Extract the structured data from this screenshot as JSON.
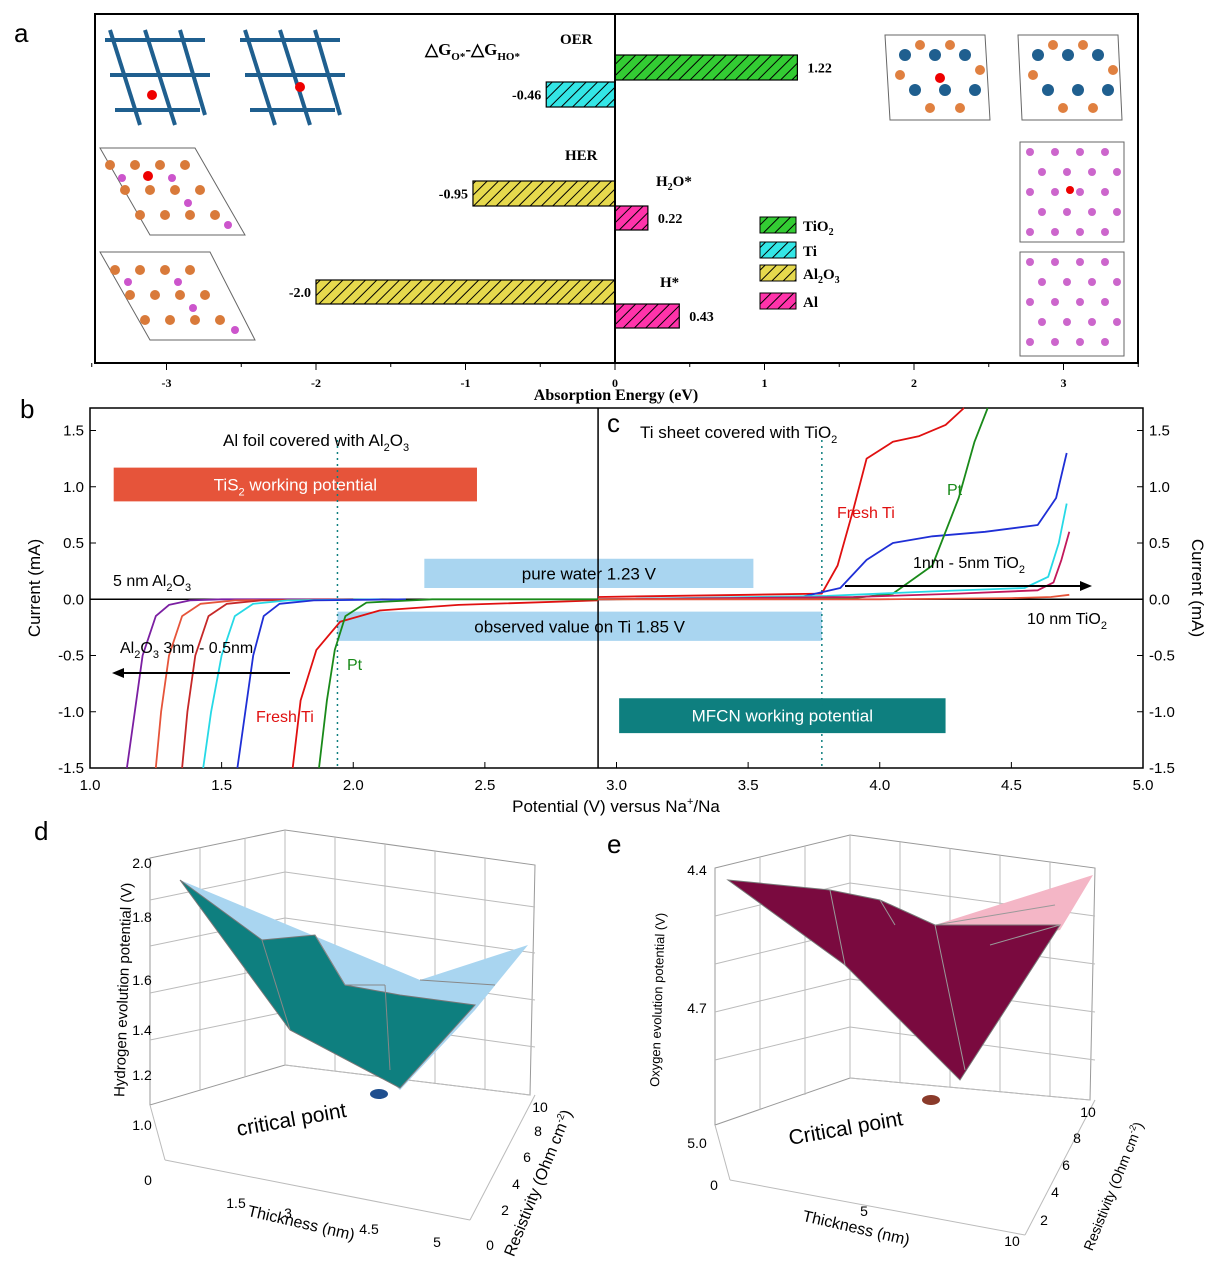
{
  "panel_labels": {
    "a": "a",
    "b": "b",
    "c": "c",
    "d": "d",
    "e": "e"
  },
  "colors": {
    "tio2": "#33cc33",
    "ti": "#33e6e6",
    "al2o3": "#e6d94d",
    "al": "#ff33aa",
    "teal": "#0e7f7f",
    "maroon": "#7a0a3f",
    "orange": "#e6543a",
    "lightblue": "#a9d5f0"
  },
  "chart_data": [
    {
      "id": "a",
      "type": "bar",
      "orientation": "horizontal",
      "xlabel": "Absorption Energy (eV)",
      "xlim": [
        -3.5,
        3.5
      ],
      "xticks": [
        -3,
        -2,
        -1,
        0,
        1,
        2,
        3
      ],
      "title_formula": "△G",
      "title_sub1": "O*",
      "title_mid": "-△G",
      "title_sub2": "HO*",
      "section_labels": {
        "oer": "OER",
        "her": "HER",
        "h2o_main": "H",
        "h2o_sub": "2",
        "h2o_tail": "O*",
        "h": "H*"
      },
      "bars": [
        {
          "name": "TiO2 OER",
          "value": 1.22,
          "label": "1.22",
          "series": "tio2"
        },
        {
          "name": "Ti OER",
          "value": -0.46,
          "label": "-0.46",
          "series": "ti"
        },
        {
          "name": "Al2O3 H2O*",
          "value": -0.95,
          "label": "-0.95",
          "series": "al2o3"
        },
        {
          "name": "Al H2O*",
          "value": 0.22,
          "label": "0.22",
          "series": "al"
        },
        {
          "name": "Al2O3 H*",
          "value": -2.0,
          "label": "-2.0",
          "series": "al2o3"
        },
        {
          "name": "Al H*",
          "value": 0.43,
          "label": "0.43",
          "series": "al"
        }
      ],
      "legend": [
        {
          "series": "tio2",
          "main": "TiO",
          "sub": "2",
          "tail": ""
        },
        {
          "series": "ti",
          "main": "Ti",
          "sub": "",
          "tail": ""
        },
        {
          "series": "al2o3",
          "main": "Al",
          "sub": "2",
          "tail": "O",
          "sub2": "3"
        },
        {
          "series": "al",
          "main": "Al",
          "sub": "",
          "tail": ""
        }
      ]
    },
    {
      "id": "bc",
      "type": "line",
      "xlabel_main": "Potential (V) versus Na",
      "xlabel_sup": "+",
      "xlabel_tail": "/Na",
      "ylabel_left": "Current (mA)",
      "ylabel_right": "Current (mA)",
      "xlim": [
        1.0,
        5.0
      ],
      "ylim": [
        -1.5,
        1.7
      ],
      "xticks": [
        1.0,
        1.5,
        2.0,
        2.5,
        3.0,
        3.5,
        4.0,
        4.5,
        5.0
      ],
      "xtick_labels": [
        "1.0",
        "1.5",
        "2.0",
        "2.5",
        "3.0",
        "3.5",
        "4.0",
        "4.5",
        "5.0"
      ],
      "yticks": [
        -1.5,
        -1.0,
        -0.5,
        0.0,
        0.5,
        1.0,
        1.5
      ],
      "ytick_labels": [
        "-1.5",
        "-1.0",
        "-0.5",
        "0.0",
        "0.5",
        "1.0",
        "1.5"
      ],
      "divider_x": 2.93,
      "dotted_lines": [
        1.94,
        3.78
      ],
      "b_title_main": "Al foil covered with Al",
      "b_title_sub": "2",
      "b_title_tail": "O",
      "b_title_sub2": "3",
      "c_title_main": "Ti sheet covered with TiO",
      "c_title_sub": "2",
      "boxes": [
        {
          "name": "tis2",
          "x0": 1.09,
          "x1": 2.47,
          "y0": 0.87,
          "y1": 1.17,
          "color": "orange",
          "main": "TiS",
          "sub": "2",
          "tail": " working potential"
        },
        {
          "name": "water",
          "x0": 2.27,
          "x1": 3.52,
          "y0": 0.1,
          "y1": 0.36,
          "color": "lightblue",
          "main": "pure water 1.23 V"
        },
        {
          "name": "observed",
          "x0": 1.94,
          "x1": 3.78,
          "y0": -0.37,
          "y1": -0.11,
          "color": "lightblue",
          "main": "observed value on Ti 1.85 V"
        },
        {
          "name": "mfcn",
          "x0": 3.01,
          "x1": 4.25,
          "y0": -1.19,
          "y1": -0.88,
          "color": "teal",
          "main": "MFCN working potential"
        }
      ],
      "annotations": {
        "al5nm_main": "5 nm Al",
        "al5nm_sub1": "2",
        "al5nm_mid": "O",
        "al5nm_sub2": "3",
        "al_range_main": "Al",
        "al_range_sub1": "2",
        "al_range_mid": "O",
        "al_range_sub2": "3",
        "al_range_tail": " 3nm - 0.5nm",
        "fresh_ti_b": "Fresh Ti",
        "pt_b": "Pt",
        "fresh_ti_c": "Fresh Ti",
        "pt_c": "Pt",
        "tio2_range_main": "1nm - 5nm TiO",
        "tio2_range_sub": "2",
        "tio2_10_main": "10 nm TiO",
        "tio2_10_sub": "2"
      },
      "series": [
        {
          "name": "Al2O3 3nm",
          "color": "#7b1fa2",
          "x": [
            1.14,
            1.17,
            1.2,
            1.25,
            1.3,
            1.38,
            1.5,
            2.0
          ],
          "y": [
            -1.5,
            -1.0,
            -0.5,
            -0.15,
            -0.05,
            -0.01,
            0.0,
            0.0
          ]
        },
        {
          "name": "Al2O3 2nm",
          "color": "#e6543a",
          "x": [
            1.25,
            1.27,
            1.3,
            1.35,
            1.42,
            1.55,
            2.0
          ],
          "y": [
            -1.5,
            -1.0,
            -0.5,
            -0.15,
            -0.04,
            -0.01,
            0.0
          ]
        },
        {
          "name": "Al2O3 1.5nm",
          "color": "#c62828",
          "x": [
            1.35,
            1.37,
            1.4,
            1.45,
            1.52,
            1.65,
            2.0
          ],
          "y": [
            -1.5,
            -1.0,
            -0.5,
            -0.15,
            -0.04,
            -0.01,
            0.0
          ]
        },
        {
          "name": "Al2O3 1nm",
          "color": "#26d9e6",
          "x": [
            1.43,
            1.46,
            1.5,
            1.55,
            1.62,
            1.75,
            2.1
          ],
          "y": [
            -1.5,
            -1.0,
            -0.5,
            -0.15,
            -0.04,
            -0.01,
            0.0
          ]
        },
        {
          "name": "Al2O3 0.5nm",
          "color": "#1f2fd6",
          "x": [
            1.56,
            1.59,
            1.62,
            1.66,
            1.72,
            1.85,
            2.2
          ],
          "y": [
            -1.5,
            -1.0,
            -0.5,
            -0.15,
            -0.04,
            -0.01,
            0.0
          ]
        },
        {
          "name": "Fresh Ti (b)",
          "color": "#e01010",
          "x": [
            1.77,
            1.8,
            1.86,
            1.95,
            2.1,
            2.4,
            2.93
          ],
          "y": [
            -1.5,
            -0.9,
            -0.45,
            -0.2,
            -0.1,
            -0.05,
            -0.01
          ]
        },
        {
          "name": "Pt (b)",
          "color": "#1a8a1a",
          "x": [
            1.87,
            1.9,
            1.93,
            1.97,
            2.05,
            2.3,
            2.93
          ],
          "y": [
            -1.5,
            -0.9,
            -0.45,
            -0.15,
            -0.03,
            0.0,
            0.0
          ]
        },
        {
          "name": "Fresh Ti (c)",
          "color": "#e01010",
          "x": [
            2.93,
            3.5,
            3.78,
            3.84,
            3.9,
            3.95,
            4.05,
            4.15,
            4.25,
            4.32
          ],
          "y": [
            0.02,
            0.04,
            0.05,
            0.3,
            0.8,
            1.25,
            1.4,
            1.45,
            1.55,
            1.7
          ]
        },
        {
          "name": "TiO2 1nm",
          "color": "#1f2fd6",
          "x": [
            2.93,
            3.7,
            3.85,
            3.95,
            4.05,
            4.2,
            4.4,
            4.6,
            4.67,
            4.71
          ],
          "y": [
            0.0,
            0.02,
            0.1,
            0.35,
            0.5,
            0.56,
            0.6,
            0.66,
            0.9,
            1.3
          ]
        },
        {
          "name": "Pt (c)",
          "color": "#1a8a1a",
          "x": [
            2.93,
            3.9,
            4.05,
            4.2,
            4.3,
            4.36,
            4.41
          ],
          "y": [
            0.0,
            0.01,
            0.05,
            0.3,
            0.9,
            1.4,
            1.7
          ]
        },
        {
          "name": "TiO2 3nm",
          "color": "#26d9e6",
          "x": [
            2.93,
            3.8,
            4.2,
            4.55,
            4.64,
            4.68,
            4.71
          ],
          "y": [
            0.0,
            0.03,
            0.07,
            0.1,
            0.2,
            0.5,
            0.85
          ]
        },
        {
          "name": "TiO2 5nm",
          "color": "#c2185b",
          "x": [
            2.93,
            3.9,
            4.3,
            4.6,
            4.66,
            4.69,
            4.72
          ],
          "y": [
            0.0,
            0.02,
            0.05,
            0.08,
            0.15,
            0.35,
            0.6
          ]
        },
        {
          "name": "TiO2 10nm",
          "color": "#e6543a",
          "x": [
            2.93,
            4.0,
            4.5,
            4.65,
            4.72
          ],
          "y": [
            0.0,
            0.0,
            0.01,
            0.02,
            0.04
          ]
        }
      ]
    },
    {
      "id": "d",
      "type": "surface3d",
      "zlabel": "Hydrogen evolution potential (V)",
      "xlabel": "Thickness (nm)",
      "ylabel_main": "Resistivity (Ohm cm",
      "ylabel_sup": "-2",
      "ylabel_tail": ")",
      "zticks": [
        1.0,
        1.2,
        1.4,
        1.6,
        1.8,
        2.0
      ],
      "ztick_labels": [
        "1.0",
        "1.2",
        "1.4",
        "1.6",
        "1.8",
        "2.0"
      ],
      "xticks": [
        0,
        1.5,
        3,
        4.5,
        5
      ],
      "xtick_labels": [
        "0",
        "1.5",
        "3",
        "4.5",
        "5"
      ],
      "yticks": [
        0,
        2,
        4,
        6,
        8,
        10
      ],
      "ytick_labels": [
        "0",
        "2",
        "4",
        "6",
        "8",
        "10"
      ],
      "annotation": "critical point",
      "surface_color": "teal",
      "back_color": "lightblue"
    },
    {
      "id": "e",
      "type": "surface3d",
      "zlabel": "Oxygen evolution potential (V)",
      "xlabel": "Thickness (nm)",
      "ylabel_main": "Resistivity (Ohm cm",
      "ylabel_sup": "-2",
      "ylabel_tail": ")",
      "zticks": [
        4.4,
        4.7,
        5.0
      ],
      "ztick_labels": [
        "4.4",
        "4.7",
        "5.0"
      ],
      "xticks": [
        0,
        5,
        10
      ],
      "xtick_labels": [
        "0",
        "5",
        "10"
      ],
      "yticks": [
        2,
        4,
        6,
        8,
        10
      ],
      "ytick_labels": [
        "2",
        "4",
        "6",
        "8",
        "10"
      ],
      "annotation": "Critical point",
      "surface_color": "maroon",
      "back_color": "#f4b6c6"
    }
  ]
}
